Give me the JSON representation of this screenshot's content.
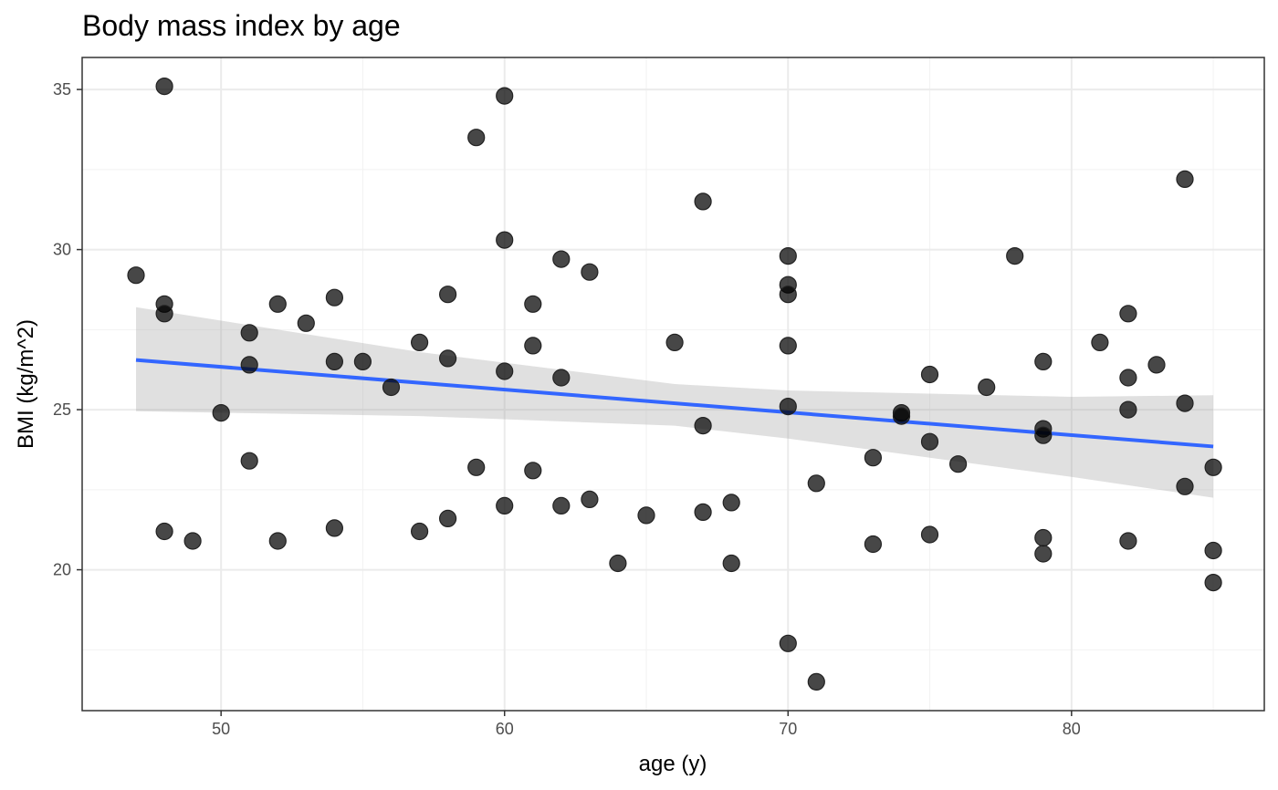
{
  "chart_data": {
    "type": "scatter",
    "title": "Body mass index by age",
    "xlabel": "age (y)",
    "ylabel": "BMI (kg/m^2)",
    "xlim": [
      45.1,
      86.8
    ],
    "ylim": [
      15.6,
      36.0
    ],
    "x_ticks": [
      50,
      60,
      70,
      80
    ],
    "x_minor_ticks": [
      45,
      55,
      65,
      75,
      85
    ],
    "y_ticks": [
      20,
      25,
      30,
      35
    ],
    "y_minor_ticks": [
      17.5,
      22.5,
      27.5,
      32.5
    ],
    "grid": true,
    "legend": "none",
    "colors": {
      "point": "#000000",
      "fit_line": "#3366ff",
      "band": "#999999"
    },
    "points": [
      [
        47,
        29.2
      ],
      [
        48,
        35.1
      ],
      [
        48,
        28.3
      ],
      [
        48,
        28.0
      ],
      [
        48,
        21.2
      ],
      [
        49,
        20.9
      ],
      [
        50,
        24.9
      ],
      [
        51,
        27.4
      ],
      [
        51,
        26.4
      ],
      [
        51,
        23.4
      ],
      [
        52,
        28.3
      ],
      [
        52,
        20.9
      ],
      [
        53,
        27.7
      ],
      [
        54,
        28.5
      ],
      [
        54,
        26.5
      ],
      [
        54,
        21.3
      ],
      [
        55,
        26.5
      ],
      [
        56,
        25.7
      ],
      [
        57,
        27.1
      ],
      [
        57,
        21.2
      ],
      [
        58,
        28.6
      ],
      [
        58,
        26.6
      ],
      [
        58,
        21.6
      ],
      [
        59,
        33.5
      ],
      [
        59,
        23.2
      ],
      [
        60,
        34.8
      ],
      [
        60,
        30.3
      ],
      [
        60,
        26.2
      ],
      [
        60,
        22.0
      ],
      [
        61,
        28.3
      ],
      [
        61,
        27.0
      ],
      [
        61,
        23.1
      ],
      [
        62,
        29.7
      ],
      [
        62,
        26.0
      ],
      [
        62,
        22.0
      ],
      [
        63,
        29.3
      ],
      [
        63,
        22.2
      ],
      [
        64,
        20.2
      ],
      [
        65,
        21.7
      ],
      [
        66,
        27.1
      ],
      [
        67,
        31.5
      ],
      [
        67,
        24.5
      ],
      [
        67,
        21.8
      ],
      [
        68,
        22.1
      ],
      [
        68,
        20.2
      ],
      [
        70,
        29.8
      ],
      [
        70,
        28.9
      ],
      [
        70,
        28.6
      ],
      [
        70,
        27.0
      ],
      [
        70,
        25.1
      ],
      [
        70,
        17.7
      ],
      [
        71,
        22.7
      ],
      [
        71,
        16.5
      ],
      [
        73,
        23.5
      ],
      [
        73,
        20.8
      ],
      [
        74,
        24.9
      ],
      [
        74,
        24.8
      ],
      [
        75,
        26.1
      ],
      [
        75,
        24.0
      ],
      [
        75,
        21.1
      ],
      [
        76,
        23.3
      ],
      [
        77,
        25.7
      ],
      [
        78,
        29.8
      ],
      [
        79,
        26.5
      ],
      [
        79,
        24.4
      ],
      [
        79,
        24.2
      ],
      [
        79,
        21.0
      ],
      [
        79,
        20.5
      ],
      [
        81,
        27.1
      ],
      [
        82,
        28.0
      ],
      [
        82,
        26.0
      ],
      [
        82,
        25.0
      ],
      [
        82,
        20.9
      ],
      [
        83,
        26.4
      ],
      [
        84,
        32.2
      ],
      [
        84,
        25.2
      ],
      [
        84,
        22.6
      ],
      [
        85,
        23.2
      ],
      [
        85,
        20.6
      ],
      [
        85,
        19.6
      ]
    ],
    "fit_line": {
      "x": [
        47,
        85
      ],
      "y": [
        26.55,
        23.85
      ]
    },
    "confidence_band": {
      "x": [
        47,
        57,
        66,
        70,
        75,
        80,
        85
      ],
      "upper": [
        28.2,
        26.8,
        25.8,
        25.6,
        25.5,
        25.4,
        25.45
      ],
      "lower": [
        24.95,
        24.8,
        24.5,
        24.1,
        23.5,
        22.9,
        22.25
      ]
    }
  }
}
